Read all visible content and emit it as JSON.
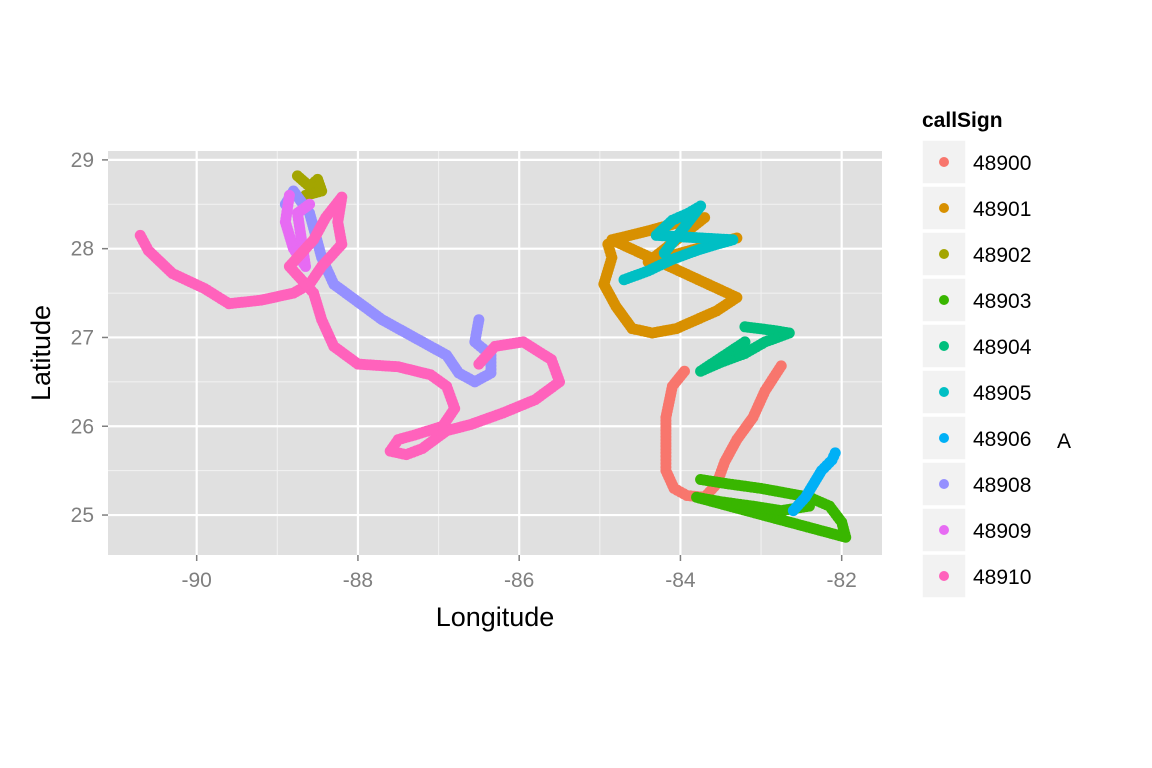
{
  "chart_data": {
    "type": "scatter",
    "title": "",
    "xlabel": "Longitude",
    "ylabel": "Latitude",
    "xlim": [
      -91.1,
      -81.5
    ],
    "ylim": [
      24.55,
      29.1
    ],
    "x_ticks": [
      -90,
      -88,
      -86,
      -84,
      -82
    ],
    "x_tick_labels": [
      "-90",
      "-88",
      "-86",
      "-84",
      "-82"
    ],
    "y_ticks": [
      25,
      26,
      27,
      28,
      29
    ],
    "y_tick_labels": [
      "25",
      "26",
      "27",
      "28",
      "29"
    ],
    "grid": true,
    "panel_background": "#e0e0e0",
    "grid_color": "#ffffff",
    "legend": {
      "title": "callSign",
      "position": "right",
      "items": [
        "48900",
        "48901",
        "48902",
        "48903",
        "48904",
        "48905",
        "48906",
        "48908",
        "48909",
        "48910"
      ]
    },
    "annotation": "A",
    "series": [
      {
        "name": "48900",
        "color": "#F8766D",
        "points": [
          [
            -83.95,
            26.62
          ],
          [
            -84.1,
            26.45
          ],
          [
            -84.18,
            26.1
          ],
          [
            -84.18,
            25.7
          ],
          [
            -84.18,
            25.5
          ],
          [
            -84.08,
            25.3
          ],
          [
            -83.92,
            25.22
          ],
          [
            -83.7,
            25.2
          ],
          [
            -83.55,
            25.35
          ],
          [
            -83.45,
            25.6
          ],
          [
            -83.3,
            25.85
          ],
          [
            -83.1,
            26.1
          ],
          [
            -82.95,
            26.4
          ],
          [
            -82.75,
            26.68
          ]
        ]
      },
      {
        "name": "48901",
        "color": "#D89000",
        "points": [
          [
            -84.9,
            28.05
          ],
          [
            -84.85,
            27.9
          ],
          [
            -84.95,
            27.6
          ],
          [
            -84.8,
            27.35
          ],
          [
            -84.6,
            27.1
          ],
          [
            -84.35,
            27.05
          ],
          [
            -84.05,
            27.1
          ],
          [
            -83.8,
            27.2
          ],
          [
            -83.55,
            27.3
          ],
          [
            -83.3,
            27.45
          ],
          [
            -84.85,
            28.1
          ],
          [
            -84.4,
            28.2
          ],
          [
            -84.0,
            28.3
          ],
          [
            -83.7,
            28.35
          ],
          [
            -84.4,
            27.85
          ],
          [
            -84.0,
            27.95
          ],
          [
            -83.6,
            28.05
          ],
          [
            -83.3,
            28.12
          ]
        ]
      },
      {
        "name": "48902",
        "color": "#A3A500",
        "points": [
          [
            -88.75,
            28.82
          ],
          [
            -88.6,
            28.7
          ],
          [
            -88.5,
            28.78
          ],
          [
            -88.45,
            28.65
          ],
          [
            -88.65,
            28.6
          ]
        ]
      },
      {
        "name": "48903",
        "color": "#39B600",
        "points": [
          [
            -83.75,
            25.4
          ],
          [
            -83.4,
            25.35
          ],
          [
            -83.0,
            25.3
          ],
          [
            -82.7,
            25.25
          ],
          [
            -82.4,
            25.2
          ],
          [
            -82.15,
            25.1
          ],
          [
            -82.0,
            24.92
          ],
          [
            -81.95,
            24.75
          ],
          [
            -83.8,
            25.2
          ],
          [
            -83.5,
            25.15
          ],
          [
            -83.1,
            25.1
          ],
          [
            -82.75,
            25.05
          ],
          [
            -82.4,
            25.1
          ]
        ]
      },
      {
        "name": "48904",
        "color": "#00BF7D",
        "points": [
          [
            -83.2,
            27.12
          ],
          [
            -82.85,
            27.08
          ],
          [
            -82.65,
            27.05
          ],
          [
            -82.95,
            26.95
          ],
          [
            -83.2,
            26.82
          ],
          [
            -83.5,
            26.72
          ],
          [
            -83.75,
            26.62
          ],
          [
            -83.2,
            26.95
          ]
        ]
      },
      {
        "name": "48905",
        "color": "#00BFC4",
        "points": [
          [
            -84.7,
            27.65
          ],
          [
            -84.4,
            27.75
          ],
          [
            -84.1,
            27.88
          ],
          [
            -83.8,
            27.98
          ],
          [
            -83.55,
            28.05
          ],
          [
            -83.35,
            28.1
          ],
          [
            -84.3,
            28.15
          ],
          [
            -84.1,
            28.32
          ],
          [
            -83.9,
            28.4
          ],
          [
            -83.75,
            28.48
          ],
          [
            -84.2,
            27.95
          ]
        ]
      },
      {
        "name": "48906",
        "color": "#00B0F6",
        "points": [
          [
            -82.6,
            25.05
          ],
          [
            -82.45,
            25.2
          ],
          [
            -82.35,
            25.35
          ],
          [
            -82.25,
            25.5
          ],
          [
            -82.12,
            25.62
          ],
          [
            -82.08,
            25.7
          ]
        ]
      },
      {
        "name": "48908",
        "color": "#9590FF",
        "points": [
          [
            -88.9,
            28.5
          ],
          [
            -88.8,
            28.65
          ],
          [
            -88.6,
            28.4
          ],
          [
            -88.45,
            27.9
          ],
          [
            -88.3,
            27.6
          ],
          [
            -88.0,
            27.4
          ],
          [
            -87.7,
            27.2
          ],
          [
            -87.4,
            27.05
          ],
          [
            -87.1,
            26.9
          ],
          [
            -86.9,
            26.8
          ],
          [
            -86.75,
            26.6
          ],
          [
            -86.55,
            26.5
          ],
          [
            -86.35,
            26.6
          ],
          [
            -86.35,
            26.8
          ],
          [
            -86.55,
            26.95
          ],
          [
            -86.5,
            27.2
          ]
        ]
      },
      {
        "name": "48909",
        "color": "#E76BF3",
        "points": [
          [
            -88.85,
            28.6
          ],
          [
            -88.9,
            28.3
          ],
          [
            -88.8,
            28.0
          ],
          [
            -88.65,
            27.8
          ],
          [
            -88.75,
            28.4
          ],
          [
            -88.6,
            28.5
          ]
        ]
      },
      {
        "name": "48910",
        "color": "#FF62BC",
        "points": [
          [
            -90.7,
            28.15
          ],
          [
            -90.6,
            27.98
          ],
          [
            -90.3,
            27.72
          ],
          [
            -89.9,
            27.55
          ],
          [
            -89.6,
            27.38
          ],
          [
            -89.2,
            27.42
          ],
          [
            -88.8,
            27.5
          ],
          [
            -88.6,
            27.6
          ],
          [
            -88.45,
            27.8
          ],
          [
            -88.2,
            28.05
          ],
          [
            -88.25,
            28.3
          ],
          [
            -88.2,
            28.58
          ],
          [
            -88.4,
            28.35
          ],
          [
            -88.55,
            28.1
          ],
          [
            -88.85,
            27.8
          ],
          [
            -88.55,
            27.5
          ],
          [
            -88.45,
            27.2
          ],
          [
            -88.3,
            26.9
          ],
          [
            -88.0,
            26.7
          ],
          [
            -87.5,
            26.67
          ],
          [
            -87.1,
            26.58
          ],
          [
            -86.9,
            26.45
          ],
          [
            -86.8,
            26.2
          ],
          [
            -86.95,
            26.0
          ],
          [
            -87.3,
            25.9
          ],
          [
            -87.5,
            25.85
          ],
          [
            -87.6,
            25.72
          ],
          [
            -87.4,
            25.68
          ],
          [
            -87.2,
            25.75
          ],
          [
            -86.9,
            25.95
          ],
          [
            -86.6,
            26.02
          ],
          [
            -86.2,
            26.15
          ],
          [
            -85.8,
            26.3
          ],
          [
            -85.5,
            26.5
          ],
          [
            -85.6,
            26.75
          ],
          [
            -85.95,
            26.95
          ],
          [
            -86.3,
            26.9
          ],
          [
            -86.5,
            26.7
          ]
        ]
      }
    ]
  }
}
